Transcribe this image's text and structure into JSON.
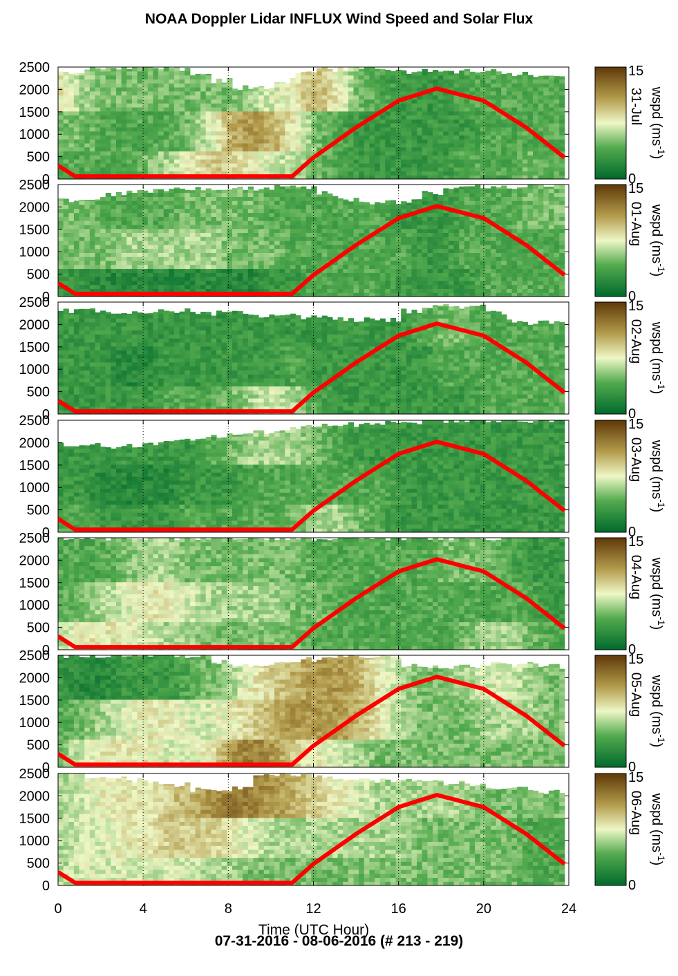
{
  "title": "NOAA Doppler Lidar INFLUX Wind Speed and Solar Flux",
  "footer": "07-31-2016 - 08-06-2016   (# 213 - 219)",
  "xlabel": "Time (UTC Hour)",
  "colorbar_label": "wspd (ms",
  "colorbar_sup": "-1",
  "colors": {
    "low": "#006a2c",
    "mid": "#eef7c6",
    "high": "#5e3808",
    "solar": "#ff0000"
  },
  "chart_data": {
    "type": "heatmap",
    "x": {
      "label": "Time (UTC Hour)",
      "range": [
        0,
        24
      ],
      "ticks": [
        0,
        4,
        8,
        12,
        16,
        20,
        24
      ]
    },
    "y": {
      "range": [
        0,
        2500
      ],
      "ticks": [
        0,
        500,
        1000,
        1500,
        2000,
        2500
      ]
    },
    "colorbar": {
      "range": [
        0,
        15
      ],
      "ticks": [
        0,
        15
      ],
      "label": "wspd (ms-1)"
    },
    "gridlines": "dotted vertical at 4, 8, 12, 16, 20",
    "solar_flux_curve": {
      "color": "red",
      "points": [
        [
          0,
          300
        ],
        [
          0.8,
          60
        ],
        [
          11,
          60
        ],
        [
          12,
          480
        ],
        [
          14,
          1150
        ],
        [
          16,
          1750
        ],
        [
          17.8,
          2020
        ],
        [
          20,
          1750
        ],
        [
          22,
          1150
        ],
        [
          23.8,
          480
        ]
      ]
    },
    "panels": [
      {
        "label": "31-Jul",
        "top_height": [
          2400,
          2450,
          2450,
          2500,
          2500,
          2450,
          2350,
          2200,
          2050,
          2050,
          2200,
          2400,
          2450,
          2500,
          2500,
          2450,
          2400,
          2400,
          2400,
          2400,
          2400,
          2350,
          2300,
          2350
        ],
        "speed": [
          [
            8,
            6,
            5,
            5,
            5,
            5,
            5,
            5,
            5,
            6,
            7,
            8,
            10,
            8,
            5,
            4,
            3,
            3,
            3,
            4,
            4,
            4,
            4,
            4
          ],
          [
            5,
            5,
            4,
            4,
            4,
            4,
            5,
            7,
            10,
            11,
            10,
            8,
            5,
            4,
            3,
            3,
            3,
            3,
            3,
            3,
            4,
            4,
            4,
            4
          ],
          [
            4,
            4,
            4,
            4,
            5,
            6,
            8,
            9,
            9,
            8,
            7,
            6,
            5,
            4,
            3,
            3,
            3,
            3,
            3,
            4,
            4,
            4,
            5,
            4
          ]
        ]
      },
      {
        "label": "01-Aug",
        "top_height": [
          2150,
          2200,
          2300,
          2350,
          2350,
          2400,
          2400,
          2400,
          2400,
          2400,
          2450,
          2450,
          2300,
          2150,
          2100,
          2100,
          2150,
          2300,
          2400,
          2450,
          2450,
          2450,
          2500,
          2500
        ],
        "speed": [
          [
            5,
            5,
            4,
            4,
            4,
            4,
            5,
            5,
            5,
            5,
            4,
            4,
            4,
            4,
            4,
            4,
            3,
            3,
            3,
            4,
            4,
            4,
            5,
            5
          ],
          [
            5,
            5,
            5,
            6,
            6,
            6,
            6,
            6,
            5,
            5,
            5,
            4,
            4,
            4,
            4,
            4,
            4,
            3,
            3,
            4,
            4,
            4,
            4,
            4
          ],
          [
            3,
            3,
            2,
            2,
            2,
            2,
            2,
            2,
            2,
            2,
            3,
            3,
            4,
            4,
            4,
            4,
            3,
            3,
            3,
            3,
            4,
            4,
            4,
            4
          ]
        ]
      },
      {
        "label": "02-Aug",
        "top_height": [
          2300,
          2300,
          2250,
          2250,
          2300,
          2300,
          2250,
          2250,
          2250,
          2200,
          2200,
          2150,
          2150,
          2100,
          2100,
          2100,
          2300,
          2400,
          2400,
          2400,
          2250,
          2100,
          2050,
          2050
        ],
        "speed": [
          [
            3,
            3,
            3,
            3,
            3,
            3,
            3,
            3,
            3,
            3,
            3,
            3,
            3,
            3,
            3,
            3,
            3,
            4,
            5,
            5,
            4,
            4,
            4,
            4
          ],
          [
            3,
            3,
            3,
            2,
            2,
            3,
            3,
            3,
            3,
            3,
            3,
            4,
            3,
            3,
            3,
            3,
            3,
            3,
            4,
            4,
            4,
            4,
            4,
            4
          ],
          [
            3,
            3,
            3,
            3,
            3,
            4,
            4,
            4,
            5,
            6,
            7,
            6,
            4,
            3,
            3,
            3,
            3,
            3,
            3,
            3,
            4,
            4,
            4,
            4
          ]
        ]
      },
      {
        "label": "03-Aug",
        "top_height": [
          1950,
          1950,
          1900,
          1950,
          2000,
          2050,
          2100,
          2150,
          2200,
          2250,
          2300,
          2350,
          2400,
          2400,
          2450,
          2450,
          2450,
          2500,
          2500,
          2500,
          2500,
          2500,
          2500,
          2500
        ],
        "speed": [
          [
            3,
            3,
            3,
            3,
            3,
            3,
            3,
            4,
            5,
            6,
            6,
            6,
            5,
            4,
            3,
            3,
            3,
            3,
            3,
            3,
            3,
            3,
            3,
            3
          ],
          [
            3,
            3,
            2,
            2,
            2,
            2,
            3,
            3,
            3,
            4,
            4,
            4,
            4,
            4,
            4,
            4,
            3,
            3,
            3,
            3,
            3,
            3,
            3,
            3
          ],
          [
            4,
            4,
            3,
            3,
            3,
            3,
            4,
            4,
            4,
            4,
            4,
            5,
            6,
            6,
            5,
            4,
            3,
            3,
            3,
            3,
            3,
            3,
            3,
            3
          ]
        ]
      },
      {
        "label": "04-Aug",
        "top_height": [
          2500,
          2500,
          2500,
          2500,
          2500,
          2500,
          2500,
          2500,
          2500,
          2500,
          2500,
          2500,
          2500,
          2500,
          2500,
          2500,
          2500,
          2500,
          2500,
          2500,
          2500,
          2500,
          2500,
          2500
        ],
        "speed": [
          [
            4,
            4,
            4,
            5,
            6,
            6,
            5,
            5,
            5,
            5,
            5,
            5,
            4,
            4,
            4,
            4,
            4,
            4,
            5,
            5,
            5,
            4,
            3,
            3
          ],
          [
            4,
            5,
            6,
            7,
            8,
            8,
            7,
            6,
            6,
            6,
            6,
            5,
            5,
            4,
            4,
            4,
            4,
            4,
            4,
            4,
            4,
            4,
            4,
            3
          ],
          [
            6,
            8,
            8,
            8,
            7,
            6,
            6,
            5,
            5,
            5,
            5,
            5,
            4,
            4,
            4,
            4,
            4,
            4,
            4,
            5,
            6,
            6,
            5,
            4
          ]
        ]
      },
      {
        "label": "05-Aug",
        "top_height": [
          2500,
          2500,
          2500,
          2500,
          2500,
          2500,
          2500,
          2350,
          2250,
          2250,
          2300,
          2400,
          2450,
          2450,
          2450,
          2450,
          2300,
          2250,
          2250,
          2250,
          2300,
          2300,
          2300,
          2250
        ],
        "speed": [
          [
            3,
            2,
            2,
            3,
            3,
            3,
            4,
            5,
            6,
            8,
            9,
            10,
            11,
            11,
            10,
            8,
            6,
            5,
            5,
            6,
            7,
            7,
            6,
            5
          ],
          [
            4,
            5,
            6,
            7,
            8,
            8,
            7,
            7,
            8,
            9,
            10,
            11,
            11,
            11,
            10,
            8,
            6,
            5,
            5,
            5,
            6,
            6,
            6,
            5
          ],
          [
            5,
            7,
            8,
            8,
            8,
            7,
            7,
            8,
            11,
            12,
            11,
            9,
            8,
            7,
            6,
            5,
            5,
            5,
            5,
            5,
            5,
            5,
            5,
            5
          ]
        ]
      },
      {
        "label": "06-Aug",
        "top_height": [
          2500,
          2450,
          2400,
          2350,
          2300,
          2250,
          2150,
          2100,
          2200,
          2450,
          2500,
          2450,
          2400,
          2350,
          2350,
          2350,
          2350,
          2350,
          2300,
          2250,
          2200,
          2150,
          2100,
          2100
        ],
        "speed": [
          [
            6,
            7,
            8,
            8,
            8,
            9,
            10,
            11,
            12,
            12,
            11,
            10,
            9,
            8,
            7,
            6,
            6,
            6,
            6,
            6,
            5,
            5,
            5,
            5
          ],
          [
            6,
            7,
            7,
            8,
            8,
            9,
            9,
            9,
            8,
            7,
            6,
            6,
            6,
            6,
            6,
            6,
            6,
            5,
            5,
            5,
            5,
            5,
            4,
            4
          ],
          [
            6,
            7,
            7,
            7,
            7,
            7,
            7,
            6,
            6,
            5,
            5,
            5,
            5,
            5,
            5,
            5,
            5,
            5,
            5,
            5,
            5,
            5,
            4,
            4
          ]
        ]
      }
    ]
  }
}
